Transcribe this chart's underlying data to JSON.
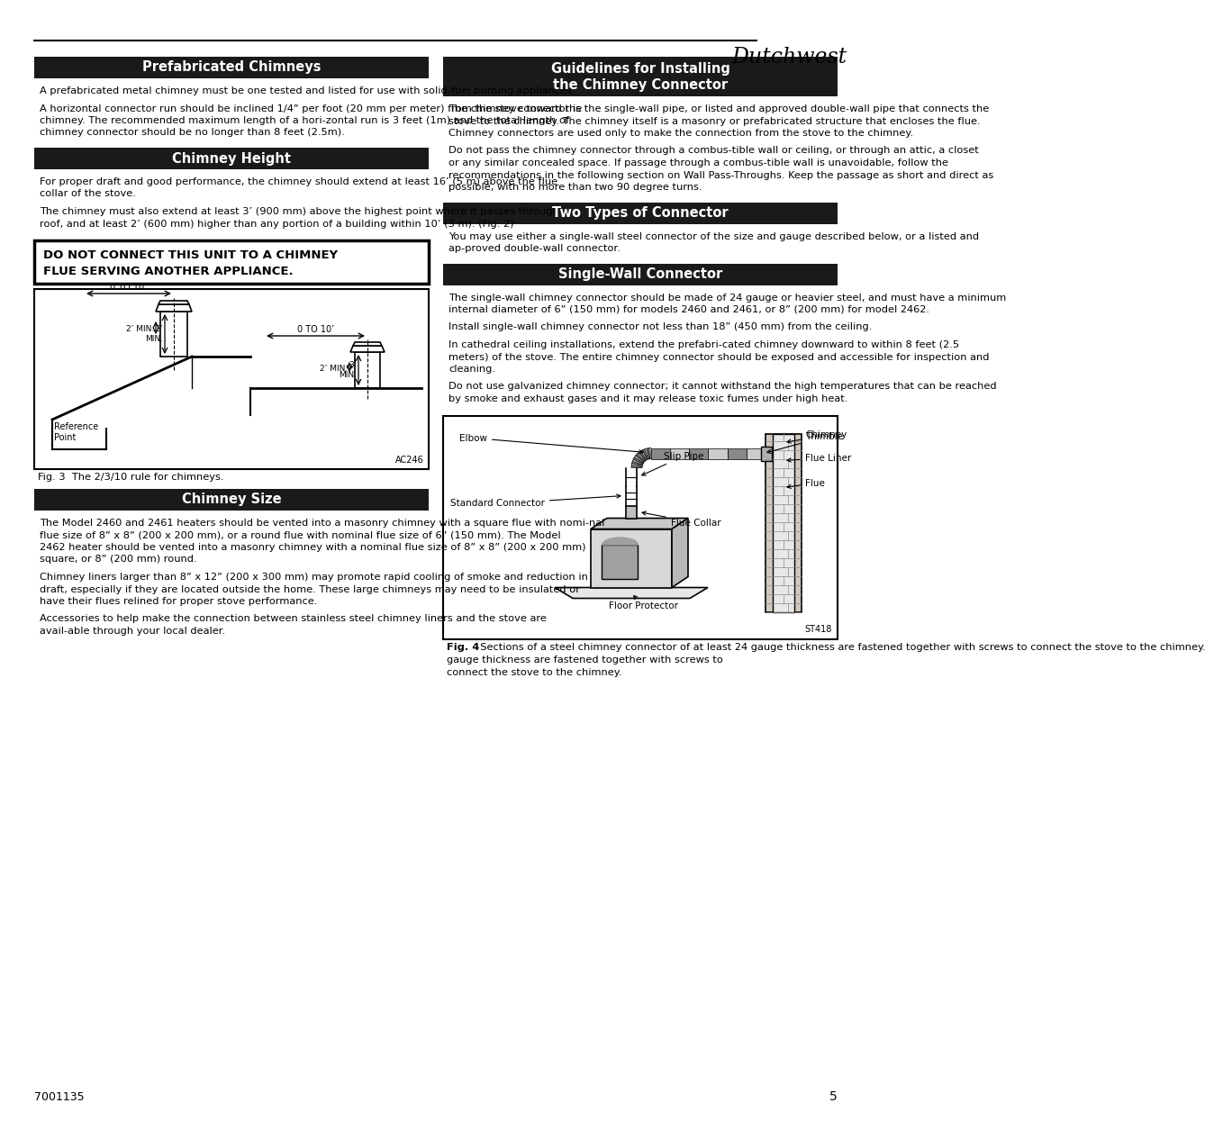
{
  "page_title": "Dutchwest",
  "page_number": "5",
  "doc_number": "7001135",
  "bg_color": "#ffffff",
  "header_bg": "#1a1a1a",
  "header_fg": "#ffffff",
  "para_pref1": "A prefabricated metal chimney must be one tested and listed for use with solid-fuel burning appliances.",
  "para_pref2": "A horizontal connector run should be inclined 1/4” per foot (20 mm per meter)  from the stove toward the chimney.  The recommended maximum length of a hori-zontal run is 3 feet (1m) and the total length of chimney connector should be no longer than 8 feet (2.5m).",
  "para_ch1": "For proper draft and good performance, the chimney should extend at least 16’ (5 m) above the flue collar of the stove.",
  "para_ch2": "The chimney must also extend at least 3’ (900 mm) above the highest point where it passes through a roof, and at least 2’ (600 mm) higher than any portion of a building within 10’ (3 m). (Fig. 2)",
  "warning_line1": "DO NOT CONNECT THIS UNIT TO A CHIMNEY",
  "warning_line2": "FLUE SERVING ANOTHER APPLIANCE.",
  "fig3_caption": "Fig. 3  The 2/3/10 rule for chimneys.",
  "para_size1": "The Model 2460 and 2461 heaters should be vented into a masonry chimney with a square flue with nomi-nal flue size of 8” x 8” (200 x 200 mm), or a round flue with nominal flue size of 6” (150 mm). The Model 2462 heater should be vented into a masonry chimney with a nominal flue size of 8” x 8” (200 x 200 mm) square, or 8” (200 mm) round.",
  "para_size2": "Chimney liners larger than 8” x 12” (200 x 300 mm) may promote rapid cooling of smoke and reduction in draft, especially if they are located outside the home. These large chimneys may need to be insulated or have their flues relined for proper stove performance.",
  "para_size3": "Accessories to help make the connection between stainless steel chimney liners and the stove are avail-able through your local dealer.",
  "para_guide1": "The chimney connector is the single-wall pipe, or listed and approved double-wall pipe that connects the stove to the chimney.  The chimney itself is a masonry or prefabricated structure that encloses the flue.  Chimney connectors are used only to make the connection from the stove to the chimney.",
  "para_guide2": "Do not pass the chimney connector through a combus-tible wall or ceiling, or through an attic, a closet or any similar concealed space.  If passage through a combus-tible wall is unavoidable, follow the recommendations in the following section on Wall Pass-Throughs.  Keep the passage as short and direct as possible, with no more than two 90 degree turns.",
  "para_two": "You may use either a single-wall steel connector of the size and gauge described below, or a listed and ap-proved double-wall connector.",
  "para_swc1": "The single-wall chimney connector should be made of 24 gauge or heavier steel, and must have a minimum internal diameter of  6” (150 mm) for models 2460 and 2461, or 8” (200 mm) for model 2462.",
  "para_swc2": "Install single-wall chimney connector not less than 18” (450 mm) from the ceiling.",
  "para_swc3": "In cathedral ceiling installations, extend the prefabri-cated chimney downward to within 8 feet (2.5 meters) of the stove.  The entire chimney connector should be exposed and accessible for inspection and cleaning.",
  "para_swc4": "Do not use galvanized chimney connector; it cannot withstand the high temperatures that can be reached by smoke and exhaust gases and it may release toxic fumes under high heat.",
  "fig4_caption_bold": "Fig. 4",
  "fig4_caption_rest": "  Sections of a steel chimney connector of at least 24 gauge thickness are fastened together with screws to connect the stove to the chimney."
}
